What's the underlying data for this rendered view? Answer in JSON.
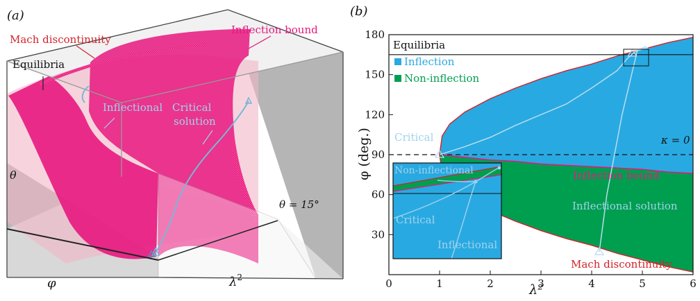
{
  "panel_a": {
    "label": "(a)",
    "annotations": {
      "mach": "Mach discontinuity",
      "inflection_bound": "Inflection bound",
      "equilibria": "Equilibria",
      "inflectional": "Inflectional",
      "critical_line1": "Critical",
      "critical_line2": "solution",
      "theta": "θ",
      "theta_eq": "θ = 15°",
      "phi": "φ",
      "lambda": "λ",
      "lambda_sup": "2"
    },
    "colors": {
      "inflection_surface": "#e8177f",
      "mach_surface": "#f2b8c6",
      "critical_path": "#7ab6d8",
      "box_shade": "#a8a8a8"
    }
  },
  "chart_data": {
    "type": "area",
    "label": "(b)",
    "xlabel": "λ²",
    "ylabel": "φ (deg.)",
    "xlim": [
      0,
      6
    ],
    "ylim": [
      0,
      180
    ],
    "xticks": [
      0,
      1,
      2,
      3,
      4,
      5,
      6
    ],
    "yticks": [
      30,
      60,
      90,
      120,
      150,
      180
    ],
    "grid": false,
    "legend": {
      "placement": "top-left",
      "title": "Equilibria",
      "entries": [
        {
          "name": "Inflection",
          "color": "#29a9e1"
        },
        {
          "name": "Non-inflection",
          "color": "#009e4f"
        }
      ]
    },
    "annotations": {
      "kappa": "κ = 0",
      "critical": "Critical",
      "inflection_bound": "Inflection bound",
      "inflectional_solution": "Inflectional solution",
      "mach": "Mach discontinuity"
    },
    "reference_lines": {
      "equilibria_phi": 165,
      "kappa_phi": 90
    },
    "series": [
      {
        "name": "Mach discontinuity",
        "x": [
          1.0,
          1.05,
          1.2,
          1.5,
          2.0,
          2.5,
          3.0,
          3.5,
          4.0,
          4.5,
          5.0,
          5.5,
          6.0
        ],
        "upper": [
          90,
          104,
          113,
          122,
          132,
          140,
          147,
          153,
          158,
          164,
          169,
          174,
          178
        ],
        "lower": [
          90,
          76,
          67,
          58,
          48,
          40,
          33,
          27,
          22,
          16,
          11,
          6,
          2
        ]
      },
      {
        "name": "Inflection bound",
        "x": [
          1.0,
          1.5,
          2.0,
          2.5,
          3.0,
          3.5,
          4.0,
          4.5,
          5.0,
          5.5,
          6.0
        ],
        "values": [
          90,
          88,
          86,
          85,
          83,
          82,
          81,
          80,
          79,
          77,
          76
        ]
      },
      {
        "name": "Critical",
        "x": [
          1.0,
          1.5,
          2.0,
          2.5,
          3.0,
          3.5,
          4.0,
          4.5,
          4.7,
          4.85,
          4.95,
          5.05,
          5.1,
          4.9,
          4.6,
          4.3,
          4.15
        ],
        "values": [
          90,
          96,
          103,
          112,
          120,
          128,
          140,
          153,
          162,
          167,
          169,
          171,
          170,
          168,
          120,
          60,
          17
        ]
      }
    ],
    "inset": {
      "annotations": {
        "non_inflectional": "Non-inflectional",
        "critical": "Critical",
        "inflectional": "Inflectional"
      }
    }
  }
}
